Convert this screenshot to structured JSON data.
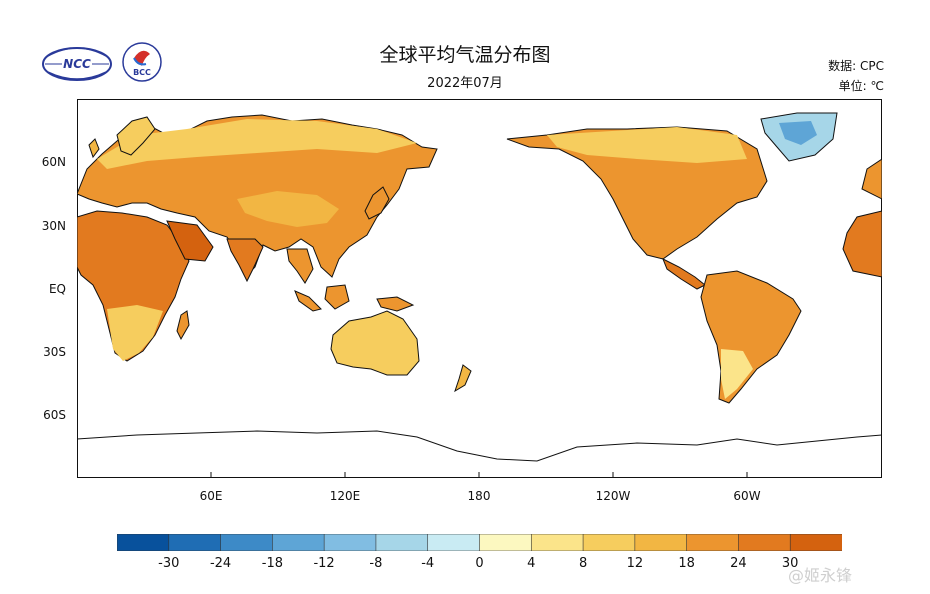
{
  "title": "全球平均气温分布图",
  "subtitle": "2022年07月",
  "meta": {
    "source": "数据: CPC",
    "unit": "单位: ℃"
  },
  "logos": {
    "ncc": "NCC",
    "bcc": "BCC"
  },
  "lat_labels": [
    "60N",
    "30N",
    "EQ",
    "30S",
    "60S"
  ],
  "lon_labels": [
    "60E",
    "120E",
    "180",
    "120W",
    "60W"
  ],
  "colorbar": {
    "labels": [
      "-30",
      "-24",
      "-18",
      "-12",
      "-8",
      "-4",
      "0",
      "4",
      "8",
      "12",
      "18",
      "24",
      "30"
    ],
    "colors": [
      "#08519c",
      "#1f6db4",
      "#3d8ac7",
      "#5ea5d6",
      "#81bde2",
      "#a6d6e8",
      "#c9ebf3",
      "#fcf8c0",
      "#fbe48a",
      "#f6cd5e",
      "#f2b643",
      "#ec952f",
      "#e27a1f",
      "#d4620f"
    ]
  },
  "watermark": "@姬永锋"
}
